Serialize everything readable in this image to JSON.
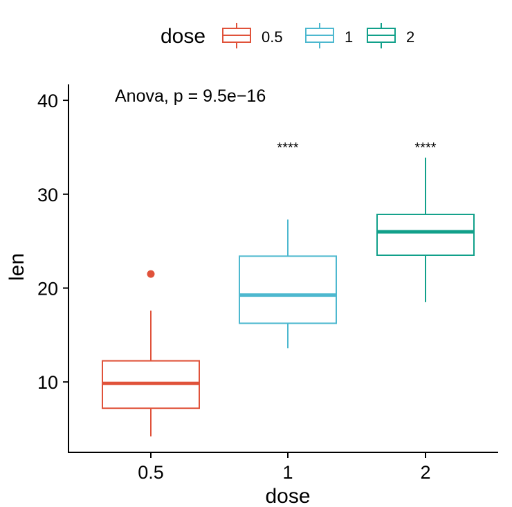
{
  "chart_data": {
    "type": "boxplot",
    "title": "",
    "xlabel": "dose",
    "ylabel": "len",
    "ylim": [
      2.5,
      41.7
    ],
    "yticks": [
      10,
      20,
      30,
      40
    ],
    "grid": false,
    "legend": {
      "title": "dose",
      "position": "top"
    },
    "annotation": "Anova, p = 9.5e−16",
    "categories": [
      "0.5",
      "1",
      "2"
    ],
    "series": [
      {
        "name": "0.5",
        "color": "#E0523A",
        "min": 4.2,
        "q1": 7.2,
        "median": 9.85,
        "q3": 12.25,
        "max": 17.6,
        "outliers": [
          21.5
        ],
        "signif": ""
      },
      {
        "name": "1",
        "color": "#4DB8CF",
        "min": 13.6,
        "q1": 16.25,
        "median": 19.25,
        "q3": 23.4,
        "max": 27.3,
        "outliers": [],
        "signif": "****"
      },
      {
        "name": "2",
        "color": "#11A08A",
        "min": 18.5,
        "q1": 23.5,
        "median": 26.0,
        "q3": 27.85,
        "max": 33.9,
        "outliers": [],
        "signif": "****"
      }
    ]
  }
}
